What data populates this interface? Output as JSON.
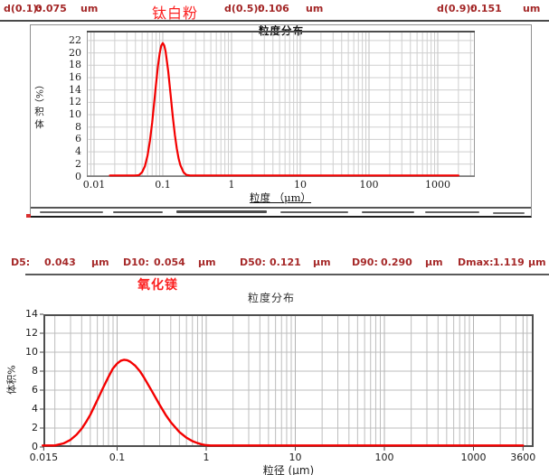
{
  "top_section": {
    "sample_name": "钛白粉",
    "stats": [
      {
        "label": "d(0.1):",
        "value": "0.075",
        "unit": "um"
      },
      {
        "label": "d(0.5):",
        "value": "0.106",
        "unit": "um"
      },
      {
        "label": "d(0.9):",
        "value": "0.151",
        "unit": "um"
      }
    ]
  },
  "bottom_section": {
    "sample_name": "氧化镁",
    "stats": [
      {
        "label": "D5:",
        "value": "0.043",
        "unit": "μm"
      },
      {
        "label": "D10:",
        "value": "0.054",
        "unit": "μm"
      },
      {
        "label": "D50:",
        "value": "0.121",
        "unit": "μm"
      },
      {
        "label": "D90:",
        "value": "0.290",
        "unit": "μm"
      },
      {
        "label": "Dmax:",
        "value": "1.119",
        "unit": "μm"
      }
    ]
  },
  "colors": {
    "stat_text": "#a32626",
    "sample_name": "#fb1f1f",
    "curve": "#f40000",
    "grid_top": "#cfcfcf",
    "grid_bottom": "#bdbdbd",
    "border_dark": "#4f4f4f"
  },
  "chart_data": [
    {
      "type": "line",
      "title": "粒度分布",
      "xlabel": "粒度 （μm）",
      "ylabel": "体积 （%）",
      "ylabel_stack": [
        "（%）",
        "积",
        "体"
      ],
      "x_scale": "log",
      "xlim": [
        0.0078,
        3460
      ],
      "ylim": [
        0,
        23.6
      ],
      "grid": "on",
      "legend": "none",
      "x_ticks": [
        {
          "v": 0.01,
          "label": "0.01"
        },
        {
          "v": 0.1,
          "label": "0.1"
        },
        {
          "v": 1,
          "label": "1"
        },
        {
          "v": 10,
          "label": "10"
        },
        {
          "v": 100,
          "label": "100"
        },
        {
          "v": 1000,
          "label": "1000"
        }
      ],
      "y_ticks": [
        0,
        2,
        4,
        6,
        8,
        10,
        12,
        14,
        16,
        18,
        20,
        22
      ],
      "series": [
        {
          "name": "钛白粉",
          "color": "#f40000",
          "points": [
            [
              0.017,
              0
            ],
            [
              0.03,
              0
            ],
            [
              0.04,
              0.05
            ],
            [
              0.045,
              0.23
            ],
            [
              0.05,
              0.7
            ],
            [
              0.055,
              1.7
            ],
            [
              0.06,
              3.4
            ],
            [
              0.065,
              5.8
            ],
            [
              0.07,
              8.7
            ],
            [
              0.075,
              12.0
            ],
            [
              0.08,
              15.1
            ],
            [
              0.085,
              17.9
            ],
            [
              0.09,
              19.9
            ],
            [
              0.095,
              21.2
            ],
            [
              0.1,
              21.6
            ],
            [
              0.105,
              21.2
            ],
            [
              0.11,
              20.2
            ],
            [
              0.12,
              17.0
            ],
            [
              0.13,
              13.2
            ],
            [
              0.14,
              9.6
            ],
            [
              0.15,
              6.7
            ],
            [
              0.16,
              4.5
            ],
            [
              0.17,
              2.9
            ],
            [
              0.18,
              1.85
            ],
            [
              0.2,
              0.7
            ],
            [
              0.22,
              0.26
            ],
            [
              0.25,
              0.05
            ],
            [
              0.3,
              0.01
            ],
            [
              0.4,
              0
            ],
            [
              1,
              0
            ],
            [
              10,
              0
            ],
            [
              100,
              0
            ],
            [
              1000,
              0
            ],
            [
              2000,
              0
            ]
          ]
        }
      ]
    },
    {
      "type": "line",
      "title": "粒度分布",
      "xlabel": "粒径 (μm)",
      "ylabel": "体积%",
      "x_scale": "log",
      "xlim": [
        0.0146,
        4500
      ],
      "ylim": [
        0,
        14
      ],
      "grid": "on",
      "legend": "none",
      "x_ticks": [
        {
          "v": 0.015,
          "label": "0.015"
        },
        {
          "v": 0.1,
          "label": "0.1"
        },
        {
          "v": 1,
          "label": "1"
        },
        {
          "v": 10,
          "label": "10"
        },
        {
          "v": 100,
          "label": "100"
        },
        {
          "v": 1000,
          "label": "1000"
        },
        {
          "v": 3600,
          "label": "3600"
        }
      ],
      "y_ticks": [
        0,
        2,
        4,
        6,
        8,
        10,
        12,
        14
      ],
      "series": [
        {
          "name": "氧化镁",
          "color": "#f40000",
          "points": [
            [
              0.0146,
              0
            ],
            [
              0.016,
              0.02
            ],
            [
              0.018,
              0.09
            ],
            [
              0.02,
              0.15
            ],
            [
              0.025,
              0.38
            ],
            [
              0.03,
              0.76
            ],
            [
              0.035,
              1.3
            ],
            [
              0.04,
              1.93
            ],
            [
              0.045,
              2.66
            ],
            [
              0.05,
              3.4
            ],
            [
              0.06,
              4.95
            ],
            [
              0.07,
              6.3
            ],
            [
              0.08,
              7.4
            ],
            [
              0.09,
              8.3
            ],
            [
              0.1,
              8.8
            ],
            [
              0.11,
              9.1
            ],
            [
              0.12,
              9.2
            ],
            [
              0.13,
              9.15
            ],
            [
              0.14,
              9.0
            ],
            [
              0.16,
              8.56
            ],
            [
              0.18,
              8.0
            ],
            [
              0.2,
              7.34
            ],
            [
              0.25,
              5.77
            ],
            [
              0.3,
              4.45
            ],
            [
              0.35,
              3.4
            ],
            [
              0.4,
              2.62
            ],
            [
              0.5,
              1.58
            ],
            [
              0.6,
              0.98
            ],
            [
              0.7,
              0.62
            ],
            [
              0.8,
              0.41
            ],
            [
              0.9,
              0.27
            ],
            [
              1.0,
              0.19
            ],
            [
              1.119,
              0.05
            ],
            [
              1.25,
              0
            ],
            [
              10,
              0
            ],
            [
              100,
              0
            ],
            [
              1000,
              0
            ],
            [
              3600,
              0
            ]
          ]
        }
      ]
    }
  ]
}
